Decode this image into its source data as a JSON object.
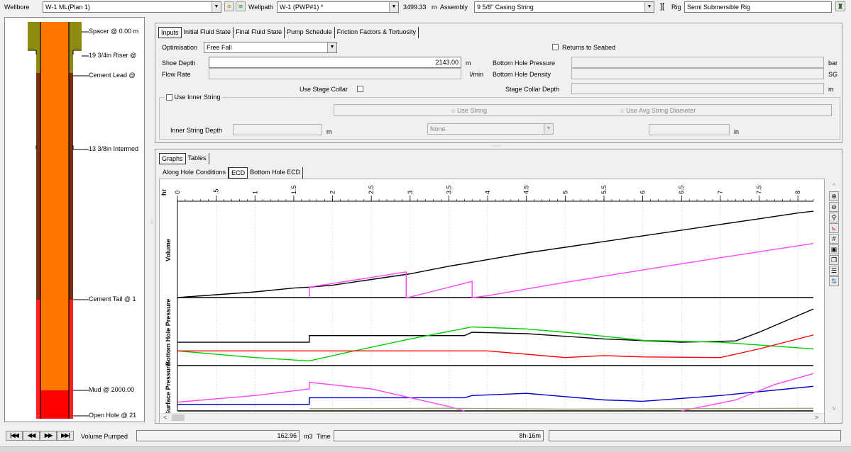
{
  "toolbar": {
    "wellbore_label": "Wellbore",
    "wellbore_value": "W-1 ML(Plan 1)",
    "wellpath_label": "Wellpath",
    "wellpath_value": "W-1 (PWP#1) *",
    "depth_value": "3499.33",
    "depth_unit": "m",
    "assembly_label": "Assembly",
    "assembly_value": "9 5/8\" Casing String",
    "rig_label": "Rig",
    "rig_value": "Semi Submersible Rig"
  },
  "wellbore_labels": [
    "Spacer @ 0.00 m",
    "19 3/4in Riser @",
    "Cement Lead  @",
    "13 3/8in Intermed",
    "Cement Tail @ 1",
    "Mud @ 2000.00",
    "Open Hole @ 21"
  ],
  "input_tabs": [
    "Inputs",
    "Initial Fluid State",
    "Final Fluid State",
    "Pump Schedule",
    "Friction Factors & Tortuosity"
  ],
  "inputs": {
    "optimisation_label": "Optimisation",
    "optimisation_value": "Free Fall",
    "returns_to_seabed": "Returns to Seabed",
    "shoe_depth_label": "Shoe Depth",
    "shoe_depth_value": "2143.00",
    "shoe_depth_unit": "m",
    "bhp_label": "Bottom Hole Pressure",
    "bhp_unit": "bar",
    "flow_rate_label": "Flow Rate",
    "flow_rate_unit": "l/min",
    "bhd_label": "Bottom Hole Density",
    "bhd_unit": "SG",
    "use_stage_collar": "Use Stage Collar",
    "stage_collar_depth_label": "Stage Collar Depth",
    "stage_collar_depth_unit": "m",
    "use_inner_string": "Use Inner String",
    "use_string": "Use String",
    "use_avg_string_diameter": "Use Avg String Diameter",
    "inner_string_depth_label": "Inner String Depth",
    "inner_string_depth_unit": "m",
    "string_select_value": "None",
    "diameter_unit": "in"
  },
  "graph_tabs": [
    "Graphs",
    "Tables"
  ],
  "graph_subtabs": [
    "Along Hole Conditions",
    "ECD",
    "Bottom Hole ECD"
  ],
  "chart": {
    "x_unit": "hr",
    "track_labels": [
      "Volume",
      "Bottom Hole Pressure",
      "Surface Pressure"
    ]
  },
  "chart_data": {
    "type": "line",
    "x_unit": "hr",
    "xlim": [
      0,
      8.2
    ],
    "xticks": [
      "0",
      ".5",
      "1",
      "1.5",
      "2",
      "2.5",
      "3",
      "3.5",
      "4",
      "4.5",
      "5",
      "5.5",
      "6",
      "6.5",
      "7",
      "7.5",
      "8"
    ],
    "tracks": [
      {
        "name": "Volume",
        "ylim": [
          0,
          1
        ],
        "series": [
          {
            "color": "#000000",
            "points": [
              [
                0,
                0
              ],
              [
                0.5,
                0.03
              ],
              [
                1,
                0.06
              ],
              [
                1.5,
                0.1
              ],
              [
                1.7,
                0.11
              ],
              [
                2,
                0.13
              ],
              [
                2.5,
                0.19
              ],
              [
                3,
                0.25
              ],
              [
                3.5,
                0.33
              ],
              [
                4,
                0.4
              ],
              [
                4.5,
                0.47
              ],
              [
                5,
                0.53
              ],
              [
                5.5,
                0.59
              ],
              [
                6,
                0.65
              ],
              [
                6.5,
                0.71
              ],
              [
                7,
                0.77
              ],
              [
                7.5,
                0.83
              ],
              [
                8,
                0.89
              ],
              [
                8.2,
                0.91
              ]
            ]
          },
          {
            "color": "#ff44ff",
            "points": [
              [
                1.7,
                0
              ],
              [
                1.7,
                0.11
              ],
              [
                2.95,
                0.27
              ],
              [
                2.95,
                0
              ],
              [
                2.97,
                0
              ],
              [
                3.8,
                0.17
              ],
              [
                3.8,
                0
              ],
              [
                3.82,
                0
              ],
              [
                4,
                0.02
              ],
              [
                5,
                0.16
              ],
              [
                6,
                0.29
              ],
              [
                7,
                0.42
              ],
              [
                8.2,
                0.57
              ]
            ]
          }
        ]
      },
      {
        "name": "Bottom Hole Pressure",
        "ylim": [
          0,
          1
        ],
        "series": [
          {
            "color": "#000000",
            "points": [
              [
                0,
                0.35
              ],
              [
                1.7,
                0.35
              ],
              [
                1.7,
                0.45
              ],
              [
                3.7,
                0.45
              ],
              [
                3.8,
                0.5
              ],
              [
                4.5,
                0.48
              ],
              [
                5.5,
                0.4
              ],
              [
                6.5,
                0.35
              ],
              [
                7.2,
                0.37
              ],
              [
                7.5,
                0.5
              ],
              [
                8.2,
                0.85
              ]
            ]
          },
          {
            "color": "#00cc00",
            "points": [
              [
                0,
                0.22
              ],
              [
                1,
                0.12
              ],
              [
                1.7,
                0.07
              ],
              [
                2.2,
                0.2
              ],
              [
                3,
                0.4
              ],
              [
                3.8,
                0.58
              ],
              [
                4.5,
                0.55
              ],
              [
                5,
                0.5
              ],
              [
                6,
                0.38
              ],
              [
                7,
                0.35
              ],
              [
                8.2,
                0.25
              ]
            ]
          },
          {
            "color": "#ff0000",
            "points": [
              [
                0,
                0.22
              ],
              [
                4,
                0.22
              ],
              [
                5,
                0.12
              ],
              [
                5.5,
                0.15
              ],
              [
                6,
                0.13
              ],
              [
                7,
                0.12
              ],
              [
                7.5,
                0.25
              ],
              [
                8.2,
                0.46
              ]
            ]
          }
        ]
      },
      {
        "name": "Surface Pressure",
        "ylim": [
          0,
          1
        ],
        "series": [
          {
            "color": "#000000",
            "points": [
              [
                0,
                0.15
              ],
              [
                1.7,
                0.15
              ],
              [
                1.7,
                0.3
              ]
            ]
          },
          {
            "color": "#0000cc",
            "points": [
              [
                0,
                0.15
              ],
              [
                1.7,
                0.15
              ],
              [
                1.7,
                0.3
              ],
              [
                3.7,
                0.3
              ],
              [
                3.8,
                0.35
              ],
              [
                4.5,
                0.4
              ],
              [
                5.5,
                0.25
              ],
              [
                6,
                0.22
              ],
              [
                7,
                0.35
              ],
              [
                8.2,
                0.56
              ]
            ]
          },
          {
            "color": "#ff44ff",
            "points": [
              [
                0,
                0.2
              ],
              [
                1,
                0.35
              ],
              [
                1.7,
                0.5
              ],
              [
                1.7,
                0.65
              ],
              [
                2.5,
                0.5
              ],
              [
                3.5,
                0.1
              ],
              [
                3.7,
                0
              ]
            ]
          },
          {
            "color": "#ff44ff",
            "points": [
              [
                6.5,
                0
              ],
              [
                7.2,
                0.25
              ],
              [
                7.7,
                0.6
              ],
              [
                8.2,
                0.85
              ]
            ]
          },
          {
            "color": "#a0a070",
            "points": [
              [
                1.7,
                0.05
              ],
              [
                3.5,
                0.06
              ],
              [
                5,
                0.04
              ],
              [
                8.2,
                0.06
              ]
            ]
          }
        ]
      }
    ]
  },
  "bottom": {
    "volume_pumped_label": "Volume Pumped",
    "volume_pumped_value": "162.96",
    "volume_pumped_unit": "m3",
    "time_label": "Time",
    "time_value": "8h-16m"
  },
  "colors": {
    "casing_olive": "#8f8a10",
    "cement_brown": "#7a2e12",
    "pipe_orange": "#ff7700",
    "cement_tail_red": "#ff2020",
    "mud_red": "#ff0000",
    "hatch": "#b05010"
  }
}
